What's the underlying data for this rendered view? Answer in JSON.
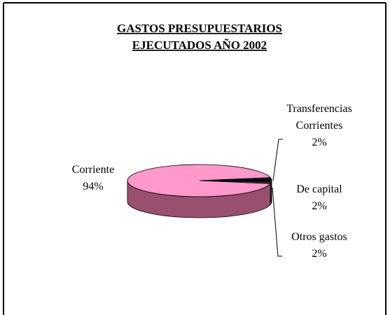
{
  "chart_data": {
    "type": "pie3d",
    "title": [
      "GASTOS PRESUPUESTARIOS",
      "EJECUTADOS AÑO 2002"
    ],
    "categories": [
      "Corriente",
      "Transferencias Corrientes",
      "De capital",
      "Otros gastos"
    ],
    "values": [
      94,
      2,
      2,
      2
    ],
    "value_labels": [
      "94%",
      "2%",
      "2%",
      "2%"
    ],
    "colors": [
      "#ff99cc",
      "#1a1a40",
      "#000000",
      "#333333"
    ],
    "side_colors": [
      "#995070",
      "#10102a",
      "#000000",
      "#222222"
    ]
  }
}
